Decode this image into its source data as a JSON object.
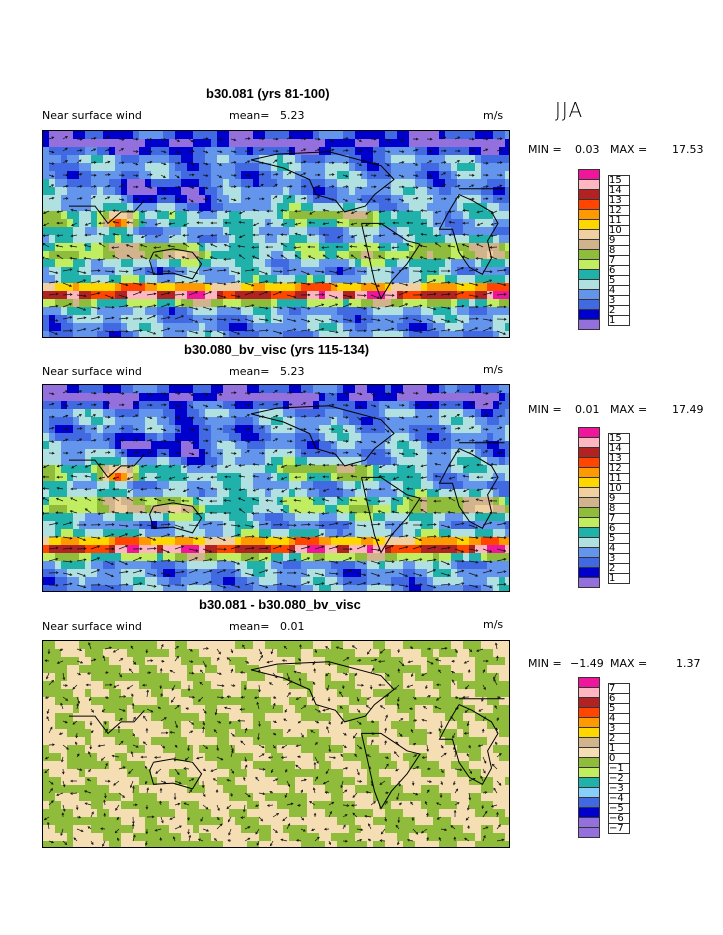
{
  "season": "JJA",
  "chart_data": [
    {
      "type": "heatmap",
      "title": "b30.081 (yrs 81-100)",
      "variable": "Near surface wind",
      "mean_label": "mean=",
      "mean": "5.23",
      "units": "m/s",
      "min_label": "MIN =",
      "min": "0.03",
      "max_label": "MAX =",
      "max": "17.53",
      "legend_levels": [
        "15",
        "14",
        "13",
        "12",
        "11",
        "10",
        "9",
        "8",
        "7",
        "6",
        "5",
        "4",
        "3",
        "2",
        "1"
      ],
      "legend_colors": [
        "#f0169b",
        "#ffb6c1",
        "#b22222",
        "#ff4500",
        "#ff9900",
        "#ffd700",
        "#f0d0a0",
        "#d2b48c",
        "#8fbc3a",
        "#c0ee60",
        "#20b2aa",
        "#b0e0e0",
        "#6495ed",
        "#4169e1",
        "#0000cd",
        "#9370db"
      ]
    },
    {
      "type": "heatmap",
      "title": "b30.080_bv_visc (yrs 115-134)",
      "variable": "Near surface wind",
      "mean_label": "mean=",
      "mean": "5.23",
      "units": "m/s",
      "min_label": "MIN =",
      "min": "0.01",
      "max_label": "MAX =",
      "max": "17.49",
      "legend_levels": [
        "15",
        "14",
        "13",
        "12",
        "11",
        "10",
        "9",
        "8",
        "7",
        "6",
        "5",
        "4",
        "3",
        "2",
        "1"
      ],
      "legend_colors": [
        "#f0169b",
        "#ffb6c1",
        "#b22222",
        "#ff4500",
        "#ff9900",
        "#ffd700",
        "#f0d0a0",
        "#d2b48c",
        "#8fbc3a",
        "#c0ee60",
        "#20b2aa",
        "#b0e0e0",
        "#6495ed",
        "#4169e1",
        "#0000cd",
        "#9370db"
      ]
    },
    {
      "type": "heatmap",
      "title": "b30.081 - b30.080_bv_visc",
      "variable": "Near surface wind",
      "mean_label": "mean=",
      "mean": "0.01",
      "units": "m/s",
      "min_label": "MIN =",
      "min": "−1.49",
      "max_label": "MAX =",
      "max": "1.37",
      "legend_levels": [
        "7",
        "6",
        "5",
        "4",
        "3",
        "2",
        "1",
        "0",
        "−1",
        "−2",
        "−3",
        "−4",
        "−5",
        "−6",
        "−7"
      ],
      "legend_colors": [
        "#f0169b",
        "#ffb6c1",
        "#b22222",
        "#ff4500",
        "#ff9900",
        "#ffd700",
        "#d2b48c",
        "#f5deb3",
        "#8fbc3a",
        "#c0ee60",
        "#20b2aa",
        "#87cefa",
        "#4169e1",
        "#0000cd",
        "#9370db",
        "#9370db"
      ]
    }
  ]
}
